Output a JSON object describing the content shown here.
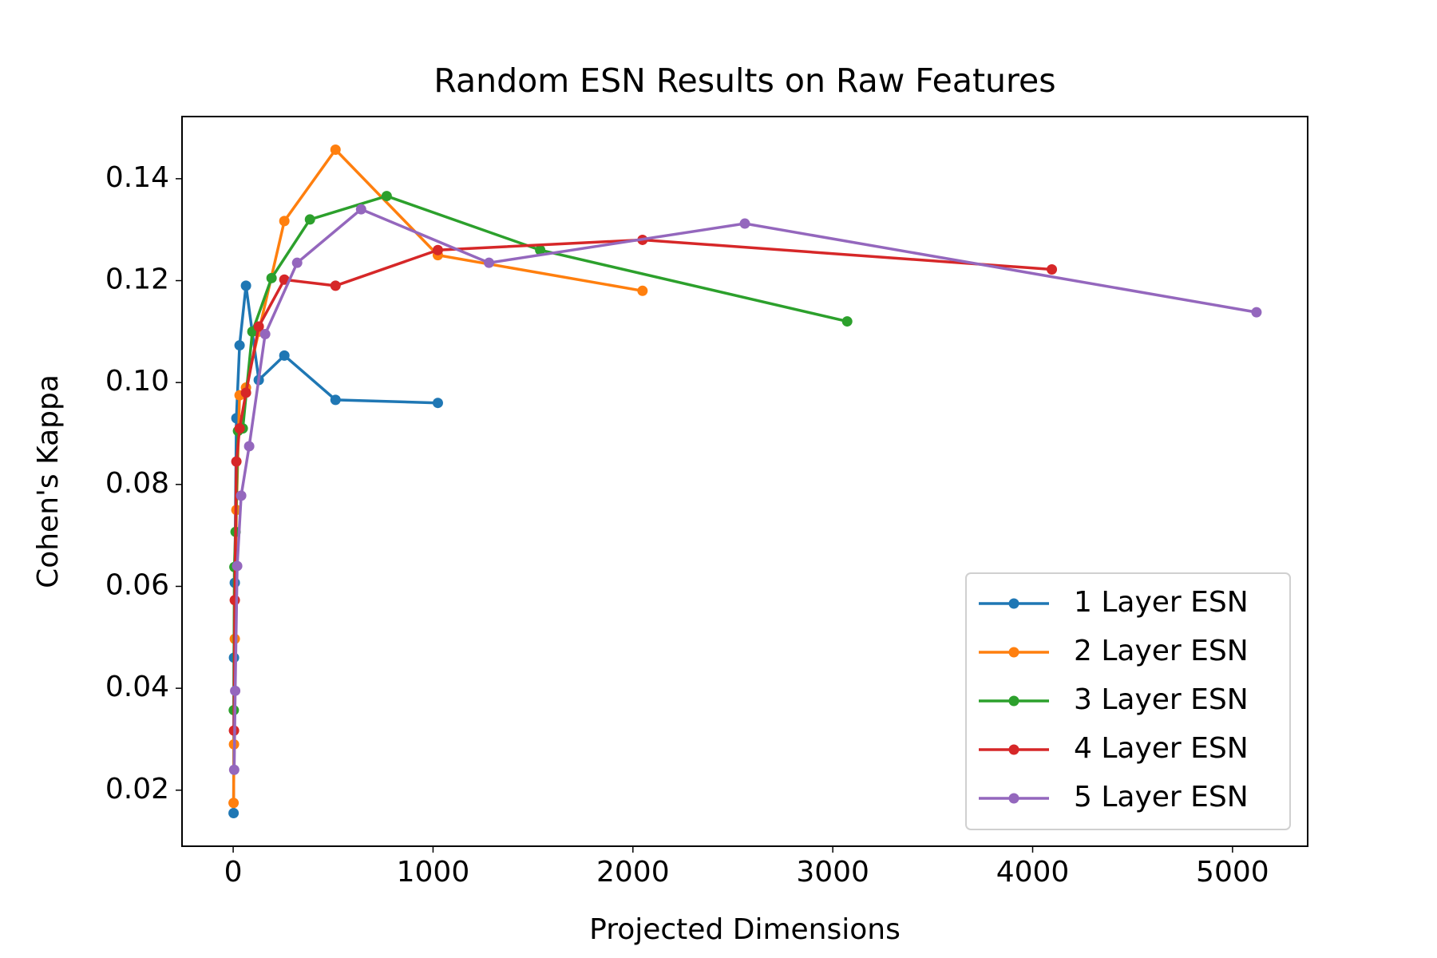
{
  "chart_data": {
    "type": "line",
    "title": "Random ESN Results on Raw Features",
    "xlabel": "Projected Dimensions",
    "ylabel": "Cohen's Kappa",
    "xlim": [
      -256,
      5376
    ],
    "xticks": [
      0,
      1000,
      2000,
      3000,
      4000,
      5000
    ],
    "ylim": [
      0.009,
      0.1522
    ],
    "yticks": [
      {
        "value": 0.02,
        "label": "0.02"
      },
      {
        "value": 0.04,
        "label": "0.04"
      },
      {
        "value": 0.06,
        "label": "0.06"
      },
      {
        "value": 0.08,
        "label": "0.08"
      },
      {
        "value": 0.1,
        "label": "0.10"
      },
      {
        "value": 0.12,
        "label": "0.12"
      },
      {
        "value": 0.14,
        "label": "0.14"
      }
    ],
    "legend": "lower right",
    "series": [
      {
        "name": "1 Layer ESN",
        "color": "#1f77b4",
        "x": [
          2,
          4,
          8,
          16,
          32,
          64,
          128,
          256,
          512,
          1024
        ],
        "values": [
          0.0155,
          0.046,
          0.0607,
          0.093,
          0.1073,
          0.119,
          0.1005,
          0.1053,
          0.0966,
          0.096
        ]
      },
      {
        "name": "2 Layer ESN",
        "color": "#ff7f0e",
        "x": [
          2,
          4,
          8,
          16,
          32,
          64,
          128,
          256,
          512,
          1024,
          2048
        ],
        "values": [
          0.0175,
          0.029,
          0.0497,
          0.075,
          0.0975,
          0.099,
          0.11,
          0.1317,
          0.1457,
          0.125,
          0.118
        ]
      },
      {
        "name": "3 Layer ESN",
        "color": "#2ca02c",
        "x": [
          3,
          6,
          12,
          24,
          48,
          96,
          192,
          384,
          768,
          1536,
          3072
        ],
        "values": [
          0.0357,
          0.0638,
          0.0707,
          0.0905,
          0.091,
          0.11,
          0.1205,
          0.132,
          0.1366,
          0.126,
          0.112
        ]
      },
      {
        "name": "4 Layer ESN",
        "color": "#d62728",
        "x": [
          4,
          8,
          16,
          32,
          64,
          128,
          256,
          512,
          1024,
          2048,
          4096
        ],
        "values": [
          0.0317,
          0.0573,
          0.0845,
          0.091,
          0.098,
          0.111,
          0.1202,
          0.119,
          0.126,
          0.128,
          0.1222
        ]
      },
      {
        "name": "5 Layer ESN",
        "color": "#9467bd",
        "x": [
          5,
          10,
          20,
          40,
          80,
          160,
          320,
          640,
          1280,
          2560,
          5120
        ],
        "values": [
          0.024,
          0.0395,
          0.064,
          0.0778,
          0.0875,
          0.1095,
          0.1235,
          0.134,
          0.1235,
          0.1312,
          0.1138
        ]
      }
    ]
  }
}
